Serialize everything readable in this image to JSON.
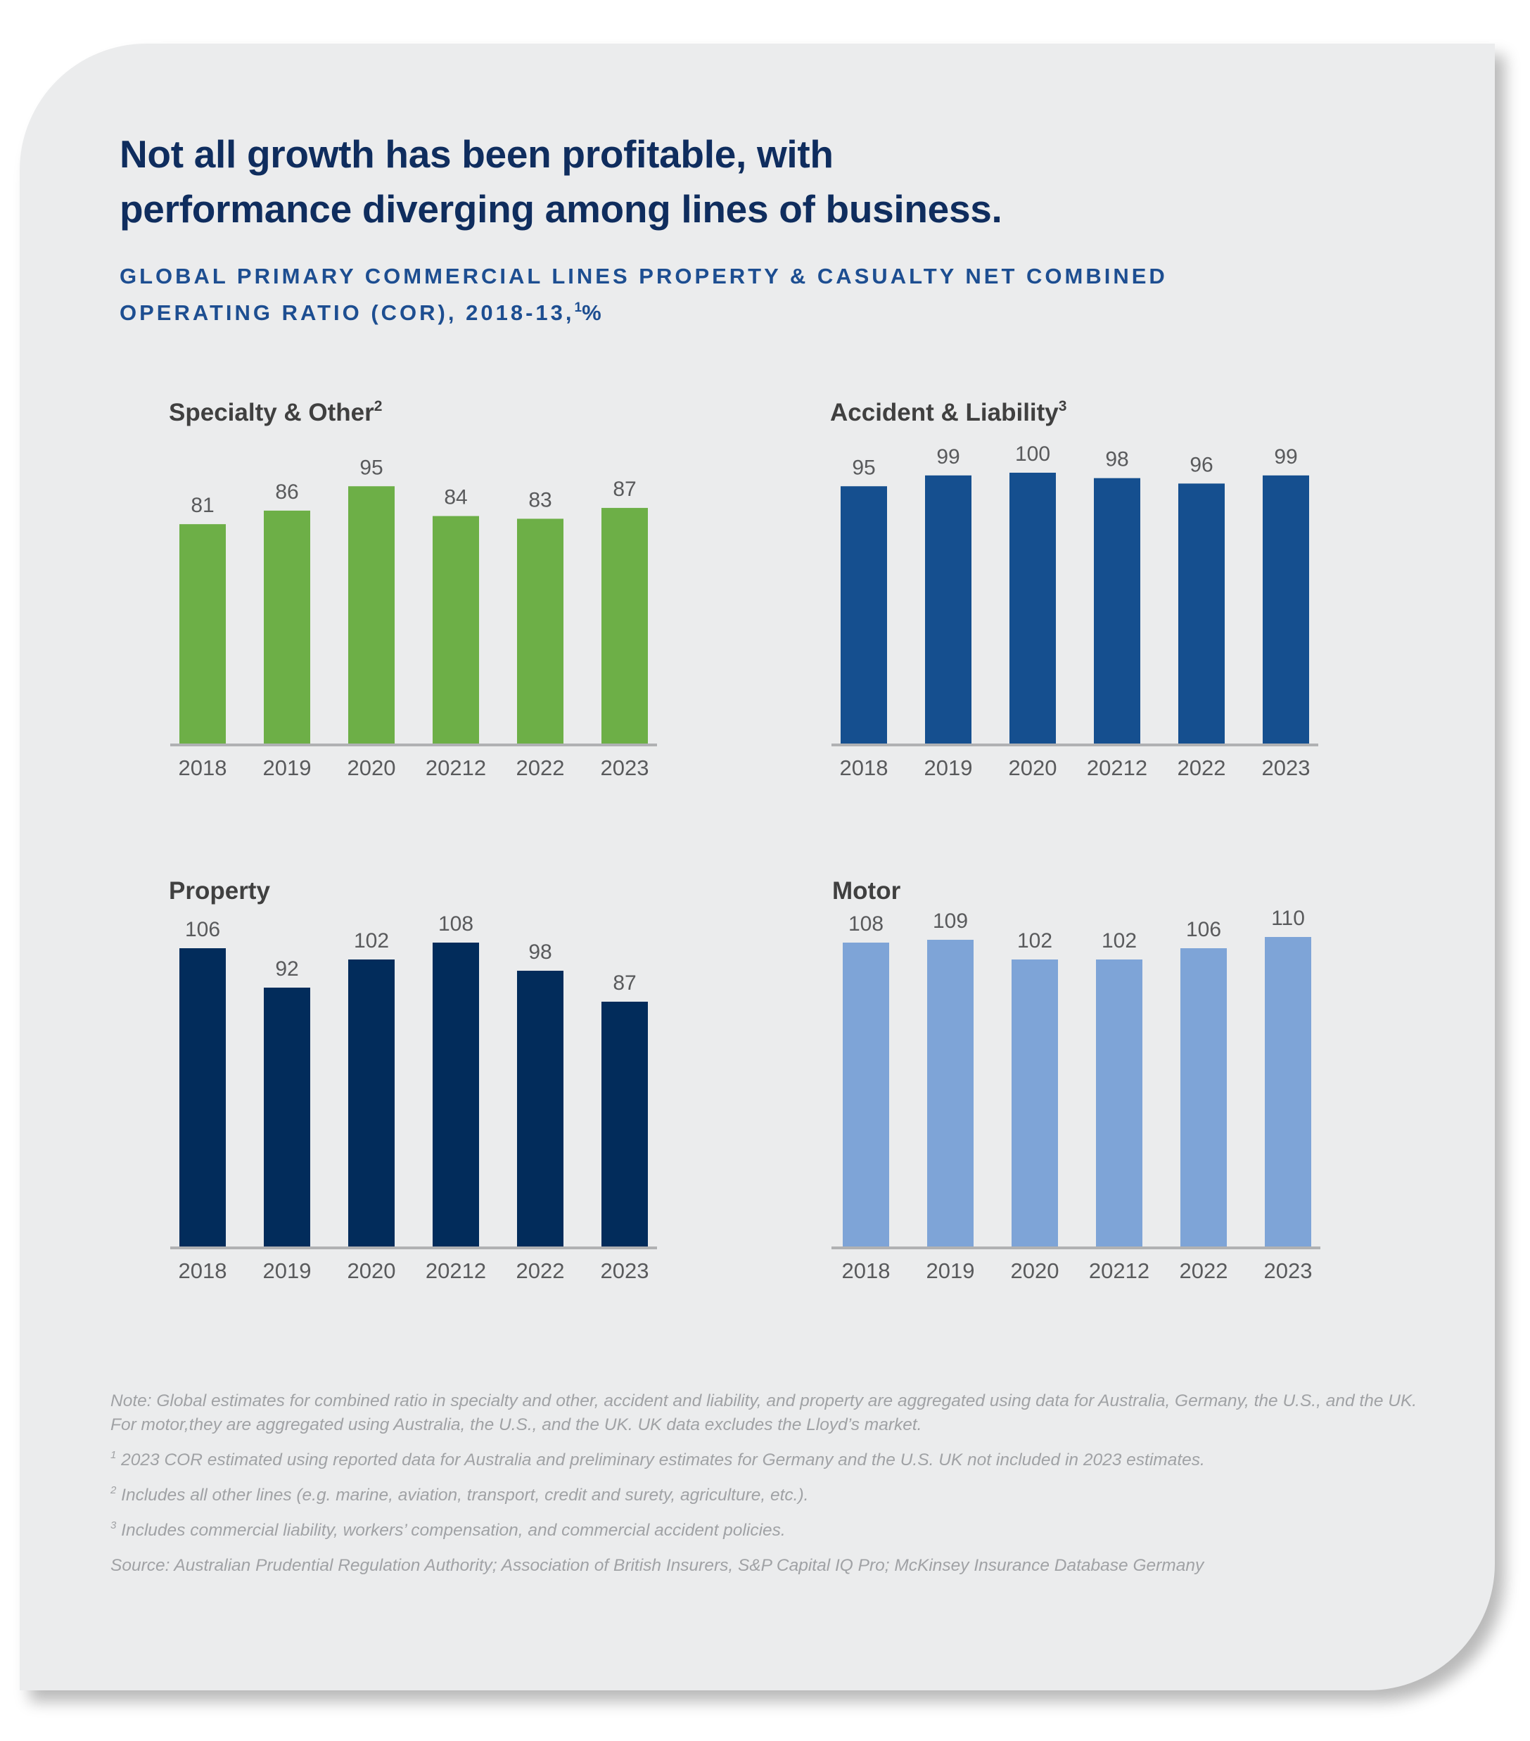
{
  "headline": {
    "line1": "Not all growth has been profitable, with",
    "line2": "performance diverging among lines of business."
  },
  "subtitle": {
    "line1": "Global primary commercial lines property & casualty net combined",
    "line2_before": "operating ratio (COR), 2018-13,",
    "line2_sup": "1",
    "line2_after": "%"
  },
  "chart_data": [
    {
      "type": "bar",
      "title": "Specialty & Other",
      "title_sup": "2",
      "categories": [
        "2018",
        "2019",
        "2020",
        "20212",
        "2022",
        "2023"
      ],
      "values": [
        81,
        86,
        95,
        84,
        83,
        87
      ],
      "color": "#6daf47",
      "xlabel": "",
      "ylabel": "",
      "ylim": [
        0,
        95
      ],
      "grid": false,
      "legend": "none"
    },
    {
      "type": "bar",
      "title": "Accident & Liability",
      "title_sup": "3",
      "categories": [
        "2018",
        "2019",
        "2020",
        "20212",
        "2022",
        "2023"
      ],
      "values": [
        95,
        99,
        100,
        98,
        96,
        99
      ],
      "color": "#154f8f",
      "xlabel": "",
      "ylabel": "",
      "ylim": [
        0,
        100
      ],
      "grid": false,
      "legend": "none"
    },
    {
      "type": "bar",
      "title": "Property",
      "title_sup": "",
      "categories": [
        "2018",
        "2019",
        "2020",
        "20212",
        "2022",
        "2023"
      ],
      "values": [
        106,
        92,
        102,
        108,
        98,
        87
      ],
      "color": "#022c5b",
      "xlabel": "",
      "ylabel": "",
      "ylim": [
        0,
        108
      ],
      "grid": false,
      "legend": "none"
    },
    {
      "type": "bar",
      "title": "Motor",
      "title_sup": "",
      "categories": [
        "2018",
        "2019",
        "2020",
        "20212",
        "2022",
        "2023"
      ],
      "values": [
        108,
        109,
        102,
        102,
        106,
        110
      ],
      "color": "#7ea4d7",
      "xlabel": "",
      "ylabel": "",
      "ylim": [
        0,
        110
      ],
      "grid": false,
      "legend": "none"
    }
  ],
  "notes": {
    "note": "Note: Global estimates for combined ratio in specialty and other, accident and liability, and property are aggregated using data for Australia, Germany, the U.S., and the UK. For motor,they are aggregated using Australia, the U.S., and the UK. UK data excludes the Lloyd’s market.",
    "footnotes": [
      {
        "marker": "1",
        "text": " 2023 COR estimated using reported data for Australia and preliminary estimates for Germany and the U.S. UK not included in 2023 estimates."
      },
      {
        "marker": "2",
        "text": " Includes all other lines (e.g. marine, aviation, transport, credit and surety, agriculture, etc.)."
      },
      {
        "marker": "3",
        "text": " Includes commercial liability, workers’ compensation, and commercial accident policies."
      }
    ],
    "source": "Source: Australian Prudential Regulation Authority; Association of British Insurers, S&P Capital IQ Pro; McKinsey Insurance Database Germany"
  },
  "colors": {
    "card_background": "#ebeced",
    "headline": "#0f2d5e",
    "subtitle": "#1d4e91",
    "axis": "#b0b1b3"
  }
}
